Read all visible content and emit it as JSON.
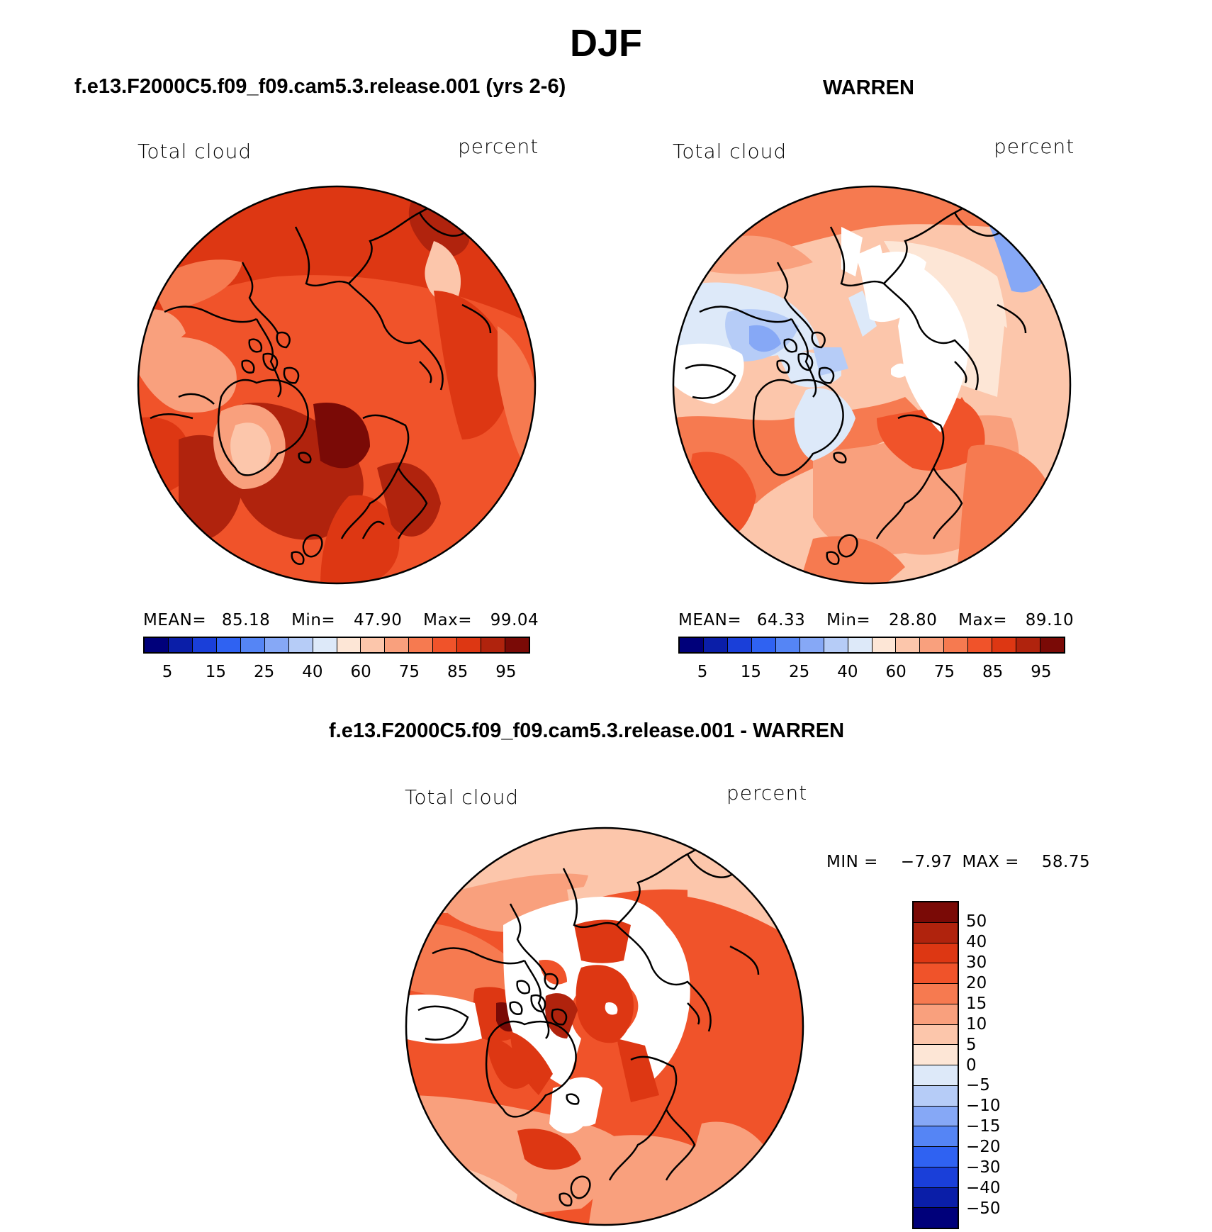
{
  "title": "DJF",
  "panels": {
    "model": {
      "title": "f.e13.F2000C5.f09_f09.cam5.3.release.001 (yrs 2-6)",
      "left_label": "Total cloud",
      "right_label": "percent",
      "stats": {
        "mean_label": "MEAN=",
        "mean": "85.18",
        "min_label": "Min=",
        "min": "47.90",
        "max_label": "Max=",
        "max": "99.04"
      }
    },
    "obs": {
      "title": "WARREN",
      "left_label": "Total cloud",
      "right_label": "percent",
      "stats": {
        "mean_label": "MEAN=",
        "mean": "64.33",
        "min_label": "Min=",
        "min": "28.80",
        "max_label": "Max=",
        "max": "89.10"
      }
    },
    "diff": {
      "title": "f.e13.F2000C5.f09_f09.cam5.3.release.001 - WARREN",
      "left_label": "Total cloud",
      "right_label": "percent",
      "stats": {
        "min_label": "MIN =",
        "min": "−7.97",
        "max_label": "MAX =",
        "max": "58.75"
      }
    }
  },
  "colorbar_abs": {
    "colors": [
      "#00007a",
      "#0a1ea8",
      "#1a3fd9",
      "#2f62f2",
      "#5585f5",
      "#86a8f6",
      "#b6ccf7",
      "#dde9f9",
      "#fde6d6",
      "#fcc6ab",
      "#f9a07d",
      "#f67a50",
      "#f0532a",
      "#dd3713",
      "#b0230d",
      "#7a0a06"
    ],
    "tick_labels": [
      "5",
      "15",
      "25",
      "40",
      "60",
      "75",
      "85",
      "95"
    ]
  },
  "colorbar_diff": {
    "colors_top_to_bottom": [
      "#7a0a06",
      "#b0230d",
      "#dd3713",
      "#f0532a",
      "#f67a50",
      "#f9a07d",
      "#fcc6ab",
      "#fde6d6",
      "#dde9f9",
      "#b6ccf7",
      "#86a8f6",
      "#5585f5",
      "#2f62f2",
      "#1a3fd9",
      "#0a1ea8",
      "#00007a"
    ],
    "tick_labels": [
      "50",
      "40",
      "30",
      "20",
      "15",
      "10",
      "5",
      "0",
      "−5",
      "−10",
      "−15",
      "−20",
      "−30",
      "−40",
      "−50"
    ]
  }
}
